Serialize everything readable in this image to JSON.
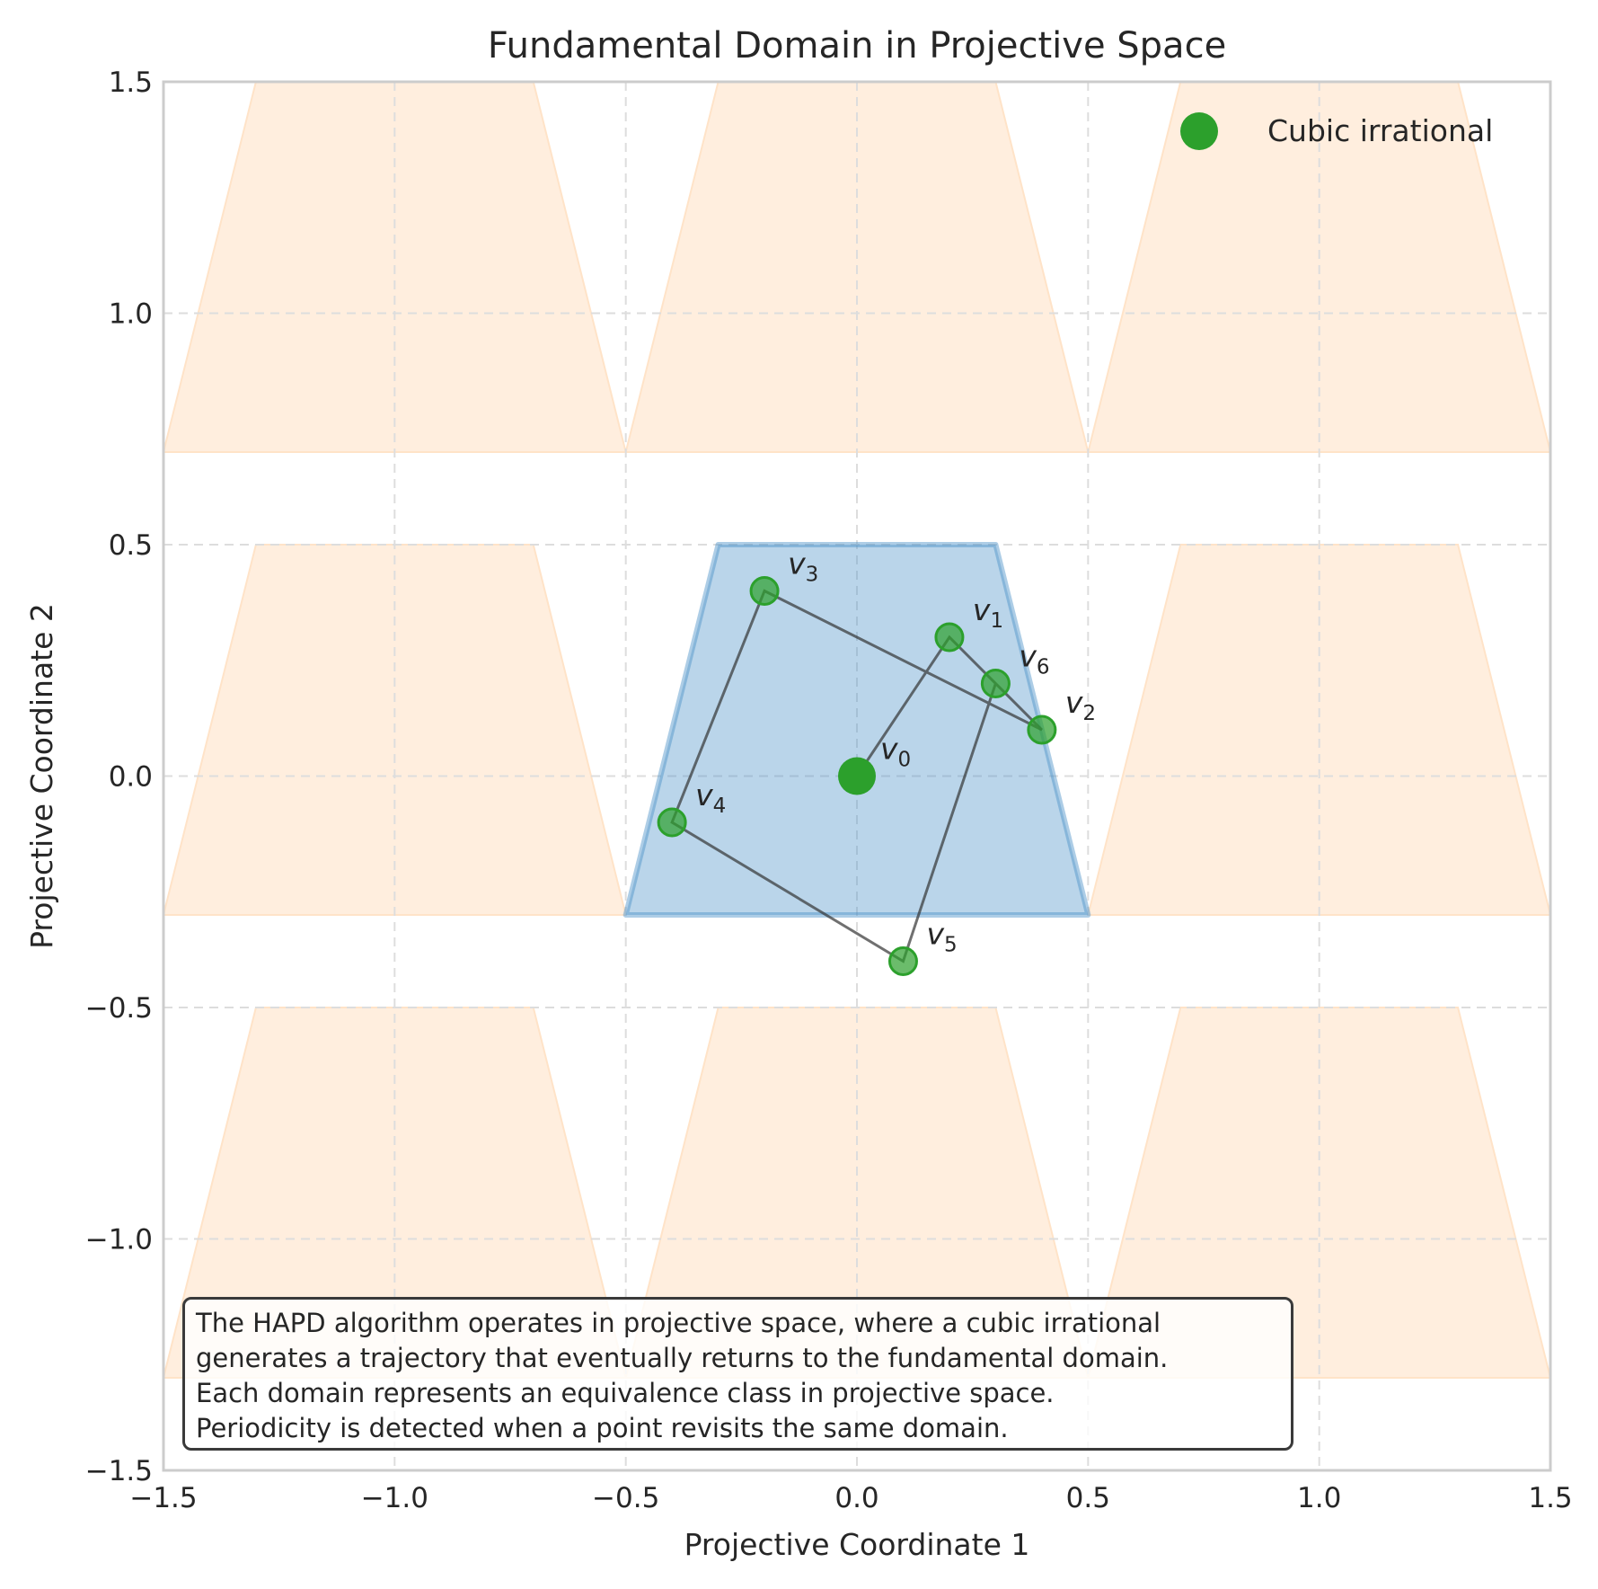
{
  "chart_data": {
    "type": "scatter",
    "title": "Fundamental Domain in Projective Space",
    "xlabel": "Projective Coordinate 1",
    "ylabel": "Projective Coordinate 2",
    "xlim": [
      -1.5,
      1.5
    ],
    "ylim": [
      -1.5,
      1.5
    ],
    "xticks": [
      -1.5,
      -1.0,
      -0.5,
      0.0,
      0.5,
      1.0,
      1.5
    ],
    "yticks": [
      -1.5,
      -1.0,
      -0.5,
      0.0,
      0.5,
      1.0,
      1.5
    ],
    "xtick_labels": [
      "−1.5",
      "−1.0",
      "−0.5",
      "0.0",
      "0.5",
      "1.0",
      "1.5"
    ],
    "ytick_labels": [
      "−1.5",
      "−1.0",
      "−0.5",
      "0.0",
      "0.5",
      "1.0",
      "1.5"
    ],
    "grid": true,
    "legend_position": "top-right",
    "legend": [
      {
        "label": "Cubic irrational",
        "color": "#2ca02c"
      }
    ],
    "fundamental_domain": {
      "vertices": [
        [
          -0.5,
          -0.3
        ],
        [
          0.5,
          -0.3
        ],
        [
          0.3,
          0.5
        ],
        [
          -0.3,
          0.5
        ]
      ],
      "color": "#4a90c8"
    },
    "translate_domains": {
      "color": "#ffe3c8",
      "shape": [
        [
          -0.5,
          -0.3
        ],
        [
          0.5,
          -0.3
        ],
        [
          0.3,
          0.5
        ],
        [
          -0.3,
          0.5
        ]
      ],
      "offsets": [
        [
          -1,
          1
        ],
        [
          0,
          1
        ],
        [
          1,
          1
        ],
        [
          -1,
          0
        ],
        [
          1,
          0
        ],
        [
          -1,
          -1
        ],
        [
          0,
          -1
        ],
        [
          1,
          -1
        ]
      ]
    },
    "trajectory": {
      "color": "#2ca02c",
      "line_color": "#333333",
      "points": [
        {
          "label": "v",
          "subscript": "0",
          "x": 0.0,
          "y": 0.0
        },
        {
          "label": "v",
          "subscript": "1",
          "x": 0.2,
          "y": 0.3
        },
        {
          "label": "v",
          "subscript": "2",
          "x": 0.4,
          "y": 0.1
        },
        {
          "label": "v",
          "subscript": "3",
          "x": -0.2,
          "y": 0.4
        },
        {
          "label": "v",
          "subscript": "4",
          "x": -0.4,
          "y": -0.1
        },
        {
          "label": "v",
          "subscript": "5",
          "x": 0.1,
          "y": -0.4
        },
        {
          "label": "v",
          "subscript": "6",
          "x": 0.3,
          "y": 0.2
        }
      ]
    },
    "annotation": [
      "The HAPD algorithm operates in projective space, where a cubic irrational",
      "generates a trajectory that eventually returns to the fundamental domain.",
      "Each domain represents an equivalence class in projective space.",
      "Periodicity is detected when a point revisits the same domain."
    ]
  }
}
